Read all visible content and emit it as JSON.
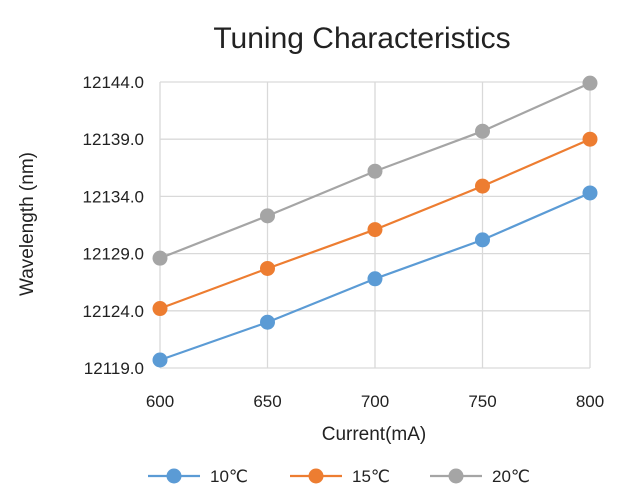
{
  "chart_data": {
    "type": "line",
    "title": "Tuning Characteristics",
    "xlabel": "Current(mA)",
    "ylabel": "Wavelength (nm)",
    "x": [
      600,
      650,
      700,
      750,
      800
    ],
    "xlim": [
      600,
      800
    ],
    "ylim": [
      12119.0,
      12144.0
    ],
    "yticks": [
      12119.0,
      12124.0,
      12129.0,
      12134.0,
      12139.0,
      12144.0
    ],
    "ytick_labels": [
      "12119.0",
      "12124.0",
      "12129.0",
      "12134.0",
      "12139.0",
      "12144.0"
    ],
    "xtick_labels": [
      "600",
      "650",
      "700",
      "750",
      "800"
    ],
    "grid": true,
    "legend_position": "bottom",
    "series": [
      {
        "name": "10℃",
        "color": "#5B9BD5",
        "values": [
          12119.7,
          12123.0,
          12126.8,
          12130.2,
          12134.3
        ]
      },
      {
        "name": "15℃",
        "color": "#ED7D31",
        "values": [
          12124.2,
          12127.7,
          12131.1,
          12134.9,
          12139.0
        ]
      },
      {
        "name": "20℃",
        "color": "#A5A5A5",
        "values": [
          12128.6,
          12132.3,
          12136.2,
          12139.7,
          12143.9
        ]
      }
    ]
  }
}
